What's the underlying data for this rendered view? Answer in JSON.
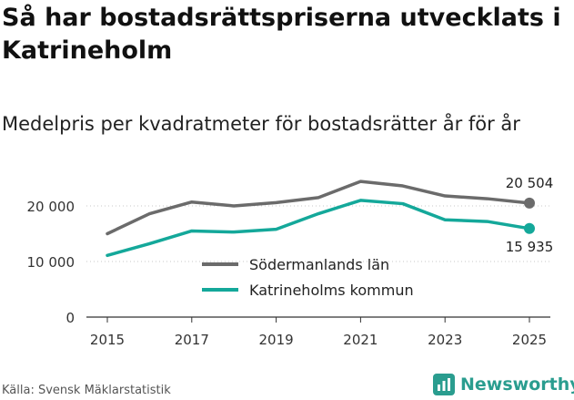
{
  "title": "Så har bostadsrättspriserna utvecklats i Katrineholm",
  "subtitle": "Medelpris per kvadratmeter för bostadsrätter år för år",
  "source": "Källa: Svensk Mäklarstatistik",
  "brand": {
    "name": "Newsworthy",
    "icon": "bar-chart-icon",
    "color": "#2a9d8f"
  },
  "chart_data": {
    "type": "line",
    "x": [
      2015,
      2016,
      2017,
      2018,
      2019,
      2020,
      2021,
      2022,
      2023,
      2024,
      2025
    ],
    "x_ticks": [
      "2015",
      "2017",
      "2019",
      "2021",
      "2023",
      "2025"
    ],
    "y_ticks": [
      "0",
      "10 000",
      "20 000"
    ],
    "ylim": [
      0,
      26000
    ],
    "series": [
      {
        "name": "Södermanlands län",
        "color": "#6b6b6b",
        "values": [
          15000,
          18600,
          20700,
          20000,
          20600,
          21500,
          24400,
          23600,
          21800,
          21300,
          20504
        ],
        "end_label": "20 504"
      },
      {
        "name": "Katrineholms kommun",
        "color": "#14a89a",
        "values": [
          11100,
          13200,
          15500,
          15300,
          15800,
          18600,
          21000,
          20400,
          17500,
          17200,
          15935
        ],
        "end_label": "15 935"
      }
    ],
    "legend_placement": "center"
  }
}
